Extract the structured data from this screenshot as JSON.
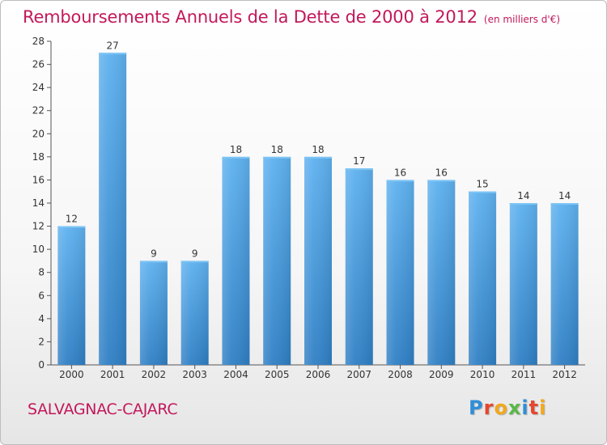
{
  "chart_data": {
    "type": "bar",
    "title": "Remboursements Annuels de la Dette de 2000 à 2012",
    "subtitle": "(en milliers d'€)",
    "categories": [
      "2000",
      "2001",
      "2002",
      "2003",
      "2004",
      "2005",
      "2006",
      "2007",
      "2008",
      "2009",
      "2010",
      "2011",
      "2012"
    ],
    "values": [
      12,
      27,
      9,
      9,
      18,
      18,
      18,
      17,
      16,
      16,
      15,
      14,
      14
    ],
    "ylim": [
      0,
      28
    ],
    "yticks": [
      0,
      2,
      4,
      6,
      8,
      10,
      12,
      14,
      16,
      18,
      20,
      22,
      24,
      26,
      28
    ],
    "grid": false,
    "bar_color": "#4a9fe0"
  },
  "footer": {
    "city": "SALVAGNAC-CAJARC",
    "logo_letters": [
      "P",
      "r",
      "o",
      "x",
      "i",
      "t",
      "i"
    ],
    "logo_colors": [
      "#2f8fd8",
      "#e6462c",
      "#f2a81d",
      "#58b947",
      "#2f8fd8",
      "#e6462c",
      "#f2a81d"
    ]
  }
}
